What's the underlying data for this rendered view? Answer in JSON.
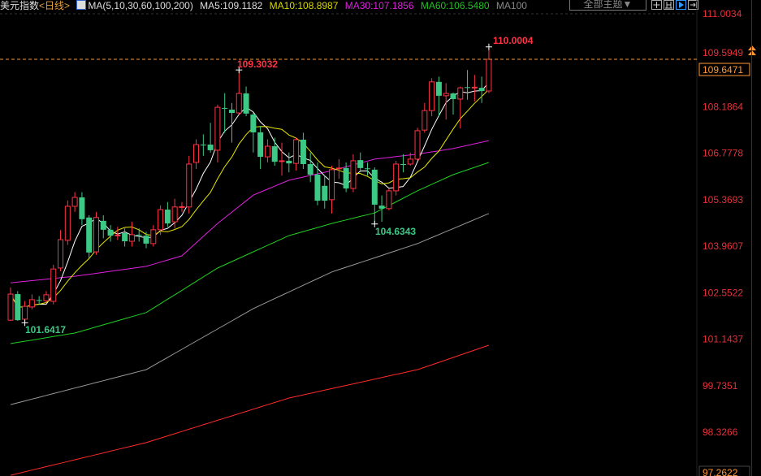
{
  "header": {
    "symbol": "美元指数",
    "period": "<日线>",
    "ma_label": "MA(5,10,30,60,100,200)",
    "ma5": "MA5:109.1182",
    "ma10": "MA10:108.8987",
    "ma30": "MA30:107.1856",
    "ma60": "MA60:106.5480",
    "ma100": "MA100",
    "theme_button": "全部主题▼",
    "tools": [
      "crosshair-icon",
      "range-icon",
      "play-icon",
      "expand-icon"
    ]
  },
  "colors": {
    "up": "#ff3344",
    "down": "#3cc985",
    "ma5": "#ffffff",
    "ma10": "#e6e600",
    "ma30": "#e020e0",
    "ma60": "#20d020",
    "ma100": "#999999",
    "ma200": "#ff2a2a",
    "axis": "#e8303a",
    "current": "#ff9933"
  },
  "chart_data": {
    "type": "candlestick",
    "title": "",
    "ylim": [
      97.2622,
      111.0034
    ],
    "y_ticks": [
      "111.0034",
      "109.5949",
      "108.1864",
      "106.7778",
      "105.3693",
      "103.9607",
      "102.5522",
      "101.1437",
      "99.7351",
      "98.3266"
    ],
    "y_min_label": "97.2622",
    "current_price": "109.6471",
    "current_line": 109.625,
    "annotations": {
      "high": "110.0004",
      "high2": "109.3032",
      "low": "104.6343",
      "low2": "101.6417"
    },
    "ohlc": [
      [
        101.72,
        102.71,
        101.7,
        102.51
      ],
      [
        102.51,
        102.6,
        101.7,
        101.72
      ],
      [
        101.75,
        102.3,
        101.6417,
        102.14
      ],
      [
        102.12,
        102.5,
        102.05,
        102.34
      ],
      [
        102.33,
        102.45,
        102.2,
        102.31
      ],
      [
        102.31,
        102.6,
        102.25,
        102.49
      ],
      [
        102.29,
        103.4,
        102.2,
        103.27
      ],
      [
        103.3,
        104.45,
        103.2,
        104.16
      ],
      [
        104.14,
        105.35,
        104.0,
        105.17
      ],
      [
        105.17,
        105.6,
        105.0,
        105.44
      ],
      [
        105.44,
        105.6,
        104.6,
        104.78
      ],
      [
        104.83,
        104.9,
        103.6,
        103.77
      ],
      [
        103.79,
        105.0,
        103.7,
        104.83
      ],
      [
        104.73,
        104.9,
        104.2,
        104.46
      ],
      [
        104.46,
        104.6,
        104.1,
        104.28
      ],
      [
        104.28,
        104.55,
        104.15,
        104.3
      ],
      [
        104.36,
        104.5,
        103.95,
        104.11
      ],
      [
        104.11,
        104.7,
        103.95,
        104.31
      ],
      [
        104.31,
        104.5,
        104.1,
        104.3
      ],
      [
        104.28,
        104.4,
        103.9,
        104.04
      ],
      [
        104.04,
        104.6,
        103.95,
        104.46
      ],
      [
        104.46,
        105.2,
        104.3,
        105.07
      ],
      [
        105.07,
        105.3,
        104.55,
        104.65
      ],
      [
        104.7,
        105.4,
        104.5,
        105.15
      ],
      [
        105.14,
        105.3,
        105.0,
        105.16
      ],
      [
        105.15,
        106.7,
        104.95,
        106.45
      ],
      [
        106.5,
        107.2,
        106.3,
        107.04
      ],
      [
        107.04,
        107.35,
        106.7,
        107.03
      ],
      [
        107.04,
        107.7,
        106.8,
        106.87
      ],
      [
        106.87,
        108.25,
        106.5,
        108.17
      ],
      [
        108.15,
        108.6,
        107.4,
        108.14
      ],
      [
        108.1,
        108.3,
        107.1,
        108.0
      ],
      [
        108.0,
        109.3032,
        107.95,
        108.59
      ],
      [
        108.59,
        108.8,
        107.9,
        107.98
      ],
      [
        107.95,
        108.0,
        106.8,
        107.41
      ],
      [
        107.41,
        107.6,
        106.3,
        106.67
      ],
      [
        106.67,
        107.2,
        106.5,
        106.99
      ],
      [
        106.99,
        107.25,
        106.4,
        106.52
      ],
      [
        106.54,
        107.1,
        106.1,
        106.55
      ],
      [
        106.55,
        106.8,
        106.2,
        106.47
      ],
      [
        106.47,
        107.25,
        106.25,
        107.19
      ],
      [
        107.19,
        107.4,
        106.3,
        106.45
      ],
      [
        106.45,
        106.8,
        105.9,
        106.13
      ],
      [
        106.13,
        106.5,
        105.2,
        105.34
      ],
      [
        105.79,
        106.1,
        105.1,
        105.34
      ],
      [
        105.37,
        106.4,
        104.95,
        106.28
      ],
      [
        106.31,
        106.6,
        106.0,
        106.33
      ],
      [
        106.33,
        106.5,
        105.6,
        105.71
      ],
      [
        105.71,
        106.75,
        105.6,
        106.55
      ],
      [
        106.57,
        106.8,
        106.2,
        106.33
      ],
      [
        106.32,
        106.5,
        106.1,
        106.3
      ],
      [
        106.28,
        106.35,
        104.6343,
        105.22
      ],
      [
        105.19,
        105.5,
        104.7,
        105.1
      ],
      [
        105.1,
        105.7,
        105.05,
        105.64
      ],
      [
        105.64,
        106.55,
        105.5,
        106.45
      ],
      [
        106.45,
        106.75,
        106.2,
        106.44
      ],
      [
        106.45,
        106.8,
        106.4,
        106.6
      ],
      [
        106.6,
        107.55,
        106.55,
        107.46
      ],
      [
        107.48,
        108.3,
        107.4,
        108.07
      ],
      [
        108.07,
        109.05,
        107.9,
        108.94
      ],
      [
        108.94,
        109.1,
        107.9,
        108.52
      ],
      [
        108.52,
        108.9,
        107.8,
        108.59
      ],
      [
        108.59,
        108.62,
        107.95,
        108.42
      ],
      [
        108.42,
        108.8,
        107.53,
        108.76
      ],
      [
        108.78,
        109.3,
        108.4,
        108.76
      ],
      [
        108.76,
        109.15,
        108.35,
        108.78
      ],
      [
        108.76,
        109.1,
        108.3,
        108.665
      ],
      [
        108.665,
        110.0004,
        108.6,
        109.625
      ]
    ],
    "ma_series": {
      "ma30": [
        [
          0,
          102.85
        ],
        [
          9,
          103.05
        ],
        [
          19,
          103.35
        ],
        [
          24,
          103.67
        ],
        [
          29,
          104.65
        ],
        [
          34,
          105.51
        ],
        [
          39,
          105.96
        ],
        [
          45,
          106.25
        ],
        [
          51,
          106.6
        ],
        [
          57,
          106.75
        ],
        [
          62,
          106.92
        ],
        [
          67,
          107.16
        ]
      ],
      "ma60": [
        [
          0,
          101.01
        ],
        [
          9,
          101.33
        ],
        [
          19,
          101.95
        ],
        [
          29,
          103.3
        ],
        [
          39,
          104.28
        ],
        [
          45,
          104.65
        ],
        [
          51,
          104.97
        ],
        [
          57,
          105.64
        ],
        [
          62,
          106.13
        ],
        [
          67,
          106.5
        ]
      ],
      "ma100": [
        [
          0,
          99.16
        ],
        [
          19,
          100.22
        ],
        [
          34,
          102.07
        ],
        [
          45,
          103.18
        ],
        [
          57,
          104.04
        ],
        [
          67,
          104.95
        ]
      ],
      "ma200": [
        [
          0,
          97.02
        ],
        [
          19,
          98.01
        ],
        [
          39,
          99.36
        ],
        [
          57,
          100.22
        ],
        [
          67,
          100.96
        ]
      ]
    }
  }
}
